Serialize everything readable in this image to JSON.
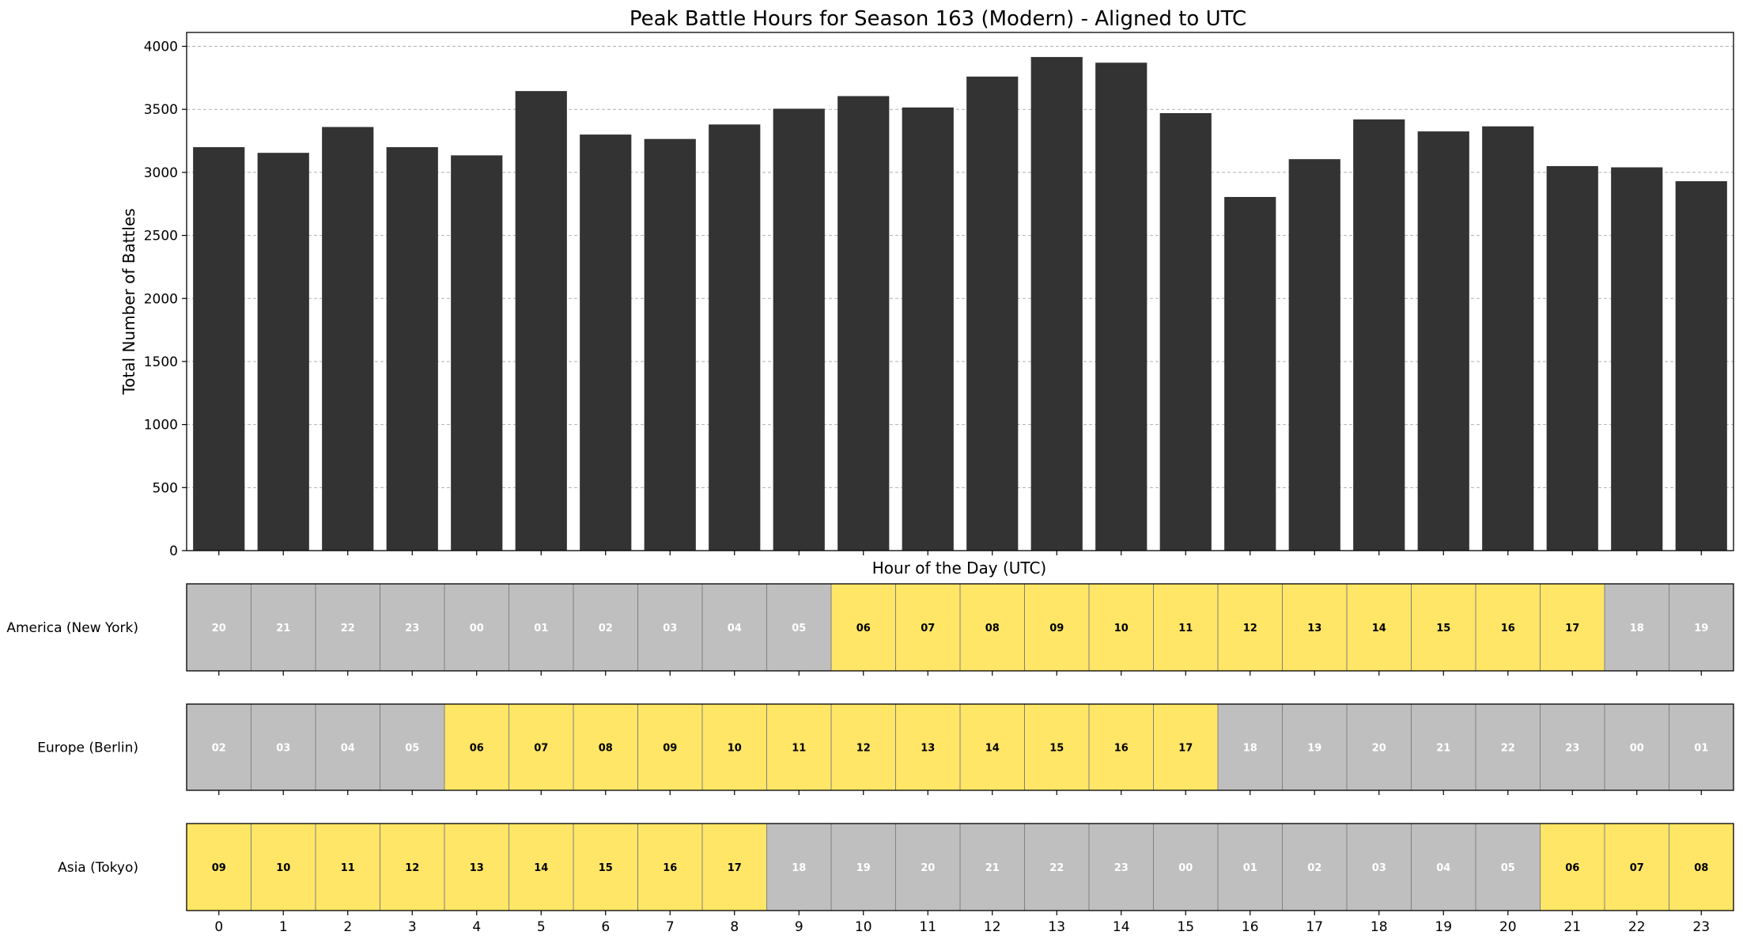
{
  "chart_data": {
    "type": "bar",
    "title": "Peak Battle Hours for Season 163 (Modern) - Aligned to UTC",
    "xlabel": "Hour of the Day (UTC)",
    "ylabel": "Total Number of Battles",
    "categories": [
      "0",
      "1",
      "2",
      "3",
      "4",
      "5",
      "6",
      "7",
      "8",
      "9",
      "10",
      "11",
      "12",
      "13",
      "14",
      "15",
      "16",
      "17",
      "18",
      "19",
      "20",
      "21",
      "22",
      "23"
    ],
    "values": [
      3200,
      3155,
      3360,
      3200,
      3135,
      3645,
      3300,
      3265,
      3380,
      3505,
      3605,
      3515,
      3760,
      3915,
      3870,
      3470,
      2805,
      3105,
      3420,
      3325,
      3365,
      3050,
      3040,
      2930
    ],
    "yticks": [
      "0",
      "500",
      "1000",
      "1500",
      "2000",
      "2500",
      "3000",
      "3500",
      "4000"
    ],
    "ylim": [
      0,
      4110
    ],
    "grid": "y-dashed",
    "bar_color": "#333333",
    "active_color": "#ffe666",
    "inactive_color": "#bfbfbf",
    "timezones": [
      {
        "label": "America (New York)",
        "hours": [
          "20",
          "21",
          "22",
          "23",
          "00",
          "01",
          "02",
          "03",
          "04",
          "05",
          "06",
          "07",
          "08",
          "09",
          "10",
          "11",
          "12",
          "13",
          "14",
          "15",
          "16",
          "17",
          "18",
          "19"
        ]
      },
      {
        "label": "Europe (Berlin)",
        "hours": [
          "02",
          "03",
          "04",
          "05",
          "06",
          "07",
          "08",
          "09",
          "10",
          "11",
          "12",
          "13",
          "14",
          "15",
          "16",
          "17",
          "18",
          "19",
          "20",
          "21",
          "22",
          "23",
          "00",
          "01"
        ]
      },
      {
        "label": "Asia (Tokyo)",
        "hours": [
          "09",
          "10",
          "11",
          "12",
          "13",
          "14",
          "15",
          "16",
          "17",
          "18",
          "19",
          "20",
          "21",
          "22",
          "23",
          "00",
          "01",
          "02",
          "03",
          "04",
          "05",
          "06",
          "07",
          "08"
        ]
      }
    ]
  }
}
